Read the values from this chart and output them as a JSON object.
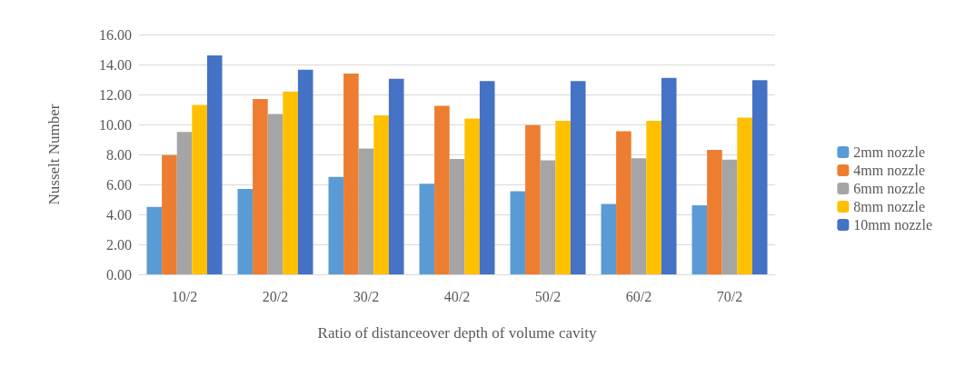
{
  "chart_data": {
    "type": "bar",
    "xlabel": "Ratio of distanceover depth of volume cavity",
    "ylabel": "Nusselt Number",
    "categories": [
      "10/2",
      "20/2",
      "30/2",
      "40/2",
      "50/2",
      "60/2",
      "70/2"
    ],
    "series": [
      {
        "name": "2mm nozzle",
        "color": "#5b9bd5",
        "values": [
          4.5,
          5.7,
          6.5,
          6.05,
          5.55,
          4.7,
          4.6
        ]
      },
      {
        "name": "4mm nozzle",
        "color": "#ed7d31",
        "values": [
          7.95,
          11.7,
          13.4,
          11.25,
          9.95,
          9.55,
          8.3
        ]
      },
      {
        "name": "6mm nozzle",
        "color": "#a5a5a5",
        "values": [
          9.5,
          10.7,
          8.4,
          7.7,
          7.6,
          7.75,
          7.65
        ]
      },
      {
        "name": "8mm nozzle",
        "color": "#ffc000",
        "values": [
          11.3,
          12.2,
          10.6,
          10.4,
          10.25,
          10.25,
          10.45
        ]
      },
      {
        "name": "10mm nozzle",
        "color": "#4472c4",
        "values": [
          14.6,
          13.65,
          13.05,
          12.9,
          12.9,
          13.1,
          12.95
        ]
      }
    ],
    "ylim": [
      0,
      16
    ],
    "yticks": [
      {
        "value": 0,
        "label": "0.00"
      },
      {
        "value": 2,
        "label": "2.00"
      },
      {
        "value": 4,
        "label": "4.00"
      },
      {
        "value": 6,
        "label": "6.00"
      },
      {
        "value": 8,
        "label": "8.00"
      },
      {
        "value": 10,
        "label": "10.00"
      },
      {
        "value": 12,
        "label": "12.00"
      },
      {
        "value": 14,
        "label": "14.00"
      },
      {
        "value": 16,
        "label": "16.00"
      }
    ],
    "grid": "y",
    "legend": "right"
  }
}
